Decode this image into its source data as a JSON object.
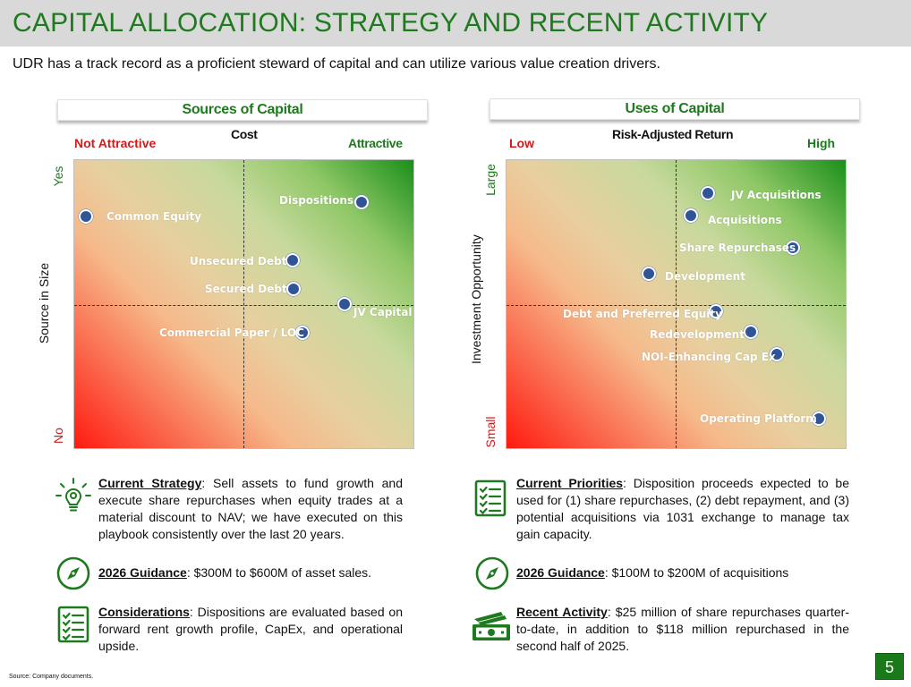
{
  "header": {
    "title": "CAPITAL ALLOCATION: STRATEGY AND RECENT ACTIVITY",
    "subtitle": "UDR has a track record as a proficient steward of capital and can utilize various value creation drivers."
  },
  "sources": {
    "heading": "Sources of Capital",
    "x_axis_title": "Cost",
    "x_low": "Not Attractive",
    "x_high": "Attractive",
    "y_axis_title": "Source in Size",
    "y_high": "Yes",
    "y_low": "No",
    "points": [
      {
        "label": "Common Equity"
      },
      {
        "label": "Dispositions"
      },
      {
        "label": "Unsecured Debt"
      },
      {
        "label": "Secured Debt"
      },
      {
        "label": "JV Capital"
      },
      {
        "label": "Commercial Paper / LOC"
      }
    ]
  },
  "uses": {
    "heading": "Uses of Capital",
    "x_axis_title": "Risk-Adjusted Return",
    "x_low": "Low",
    "x_high": "High",
    "y_axis_title": "Investment Opportunity",
    "y_high": "Large",
    "y_low": "Small",
    "points": [
      {
        "label": "JV Acquisitions"
      },
      {
        "label": "Acquisitions"
      },
      {
        "label": "Share Repurchases"
      },
      {
        "label": "Development"
      },
      {
        "label": "Debt and Preferred Equity"
      },
      {
        "label": "Redevelopment"
      },
      {
        "label": "NOI-Enhancing Cap Ex"
      },
      {
        "label": "Operating Platform"
      }
    ]
  },
  "left_notes": {
    "strategy_lead": "Current Strategy",
    "strategy_text": ": Sell assets to fund growth and execute share repurchases when equity trades at a material discount to NAV; we have executed on this playbook consistently over the last 20 years.",
    "guidance_lead": "2026 Guidance",
    "guidance_text": ": $300M to $600M of asset sales.",
    "considerations_lead": "Considerations",
    "considerations_text": ": Dispositions are evaluated based on forward rent growth profile, CapEx, and operational upside."
  },
  "right_notes": {
    "priorities_lead": "Current Priorities",
    "priorities_text": ": Disposition proceeds expected to be used for (1) share repurchases, (2) debt repayment, and (3) potential acquisitions via 1031 exchange to manage tax gain capacity.",
    "guidance_lead": "2026 Guidance",
    "guidance_text": ": $100M to $200M of acquisitions",
    "activity_lead": "Recent Activity",
    "activity_text": ": $25 million of share repurchases quarter-to-date, in addition to $118 million repurchased in the second half of 2025."
  },
  "footer": {
    "source": "Source: Company documents.",
    "page_number": "5"
  },
  "colors": {
    "brand_green": "#1f7a1f",
    "warning_red": "#d11a1a",
    "dot_blue": "#2f5597"
  }
}
